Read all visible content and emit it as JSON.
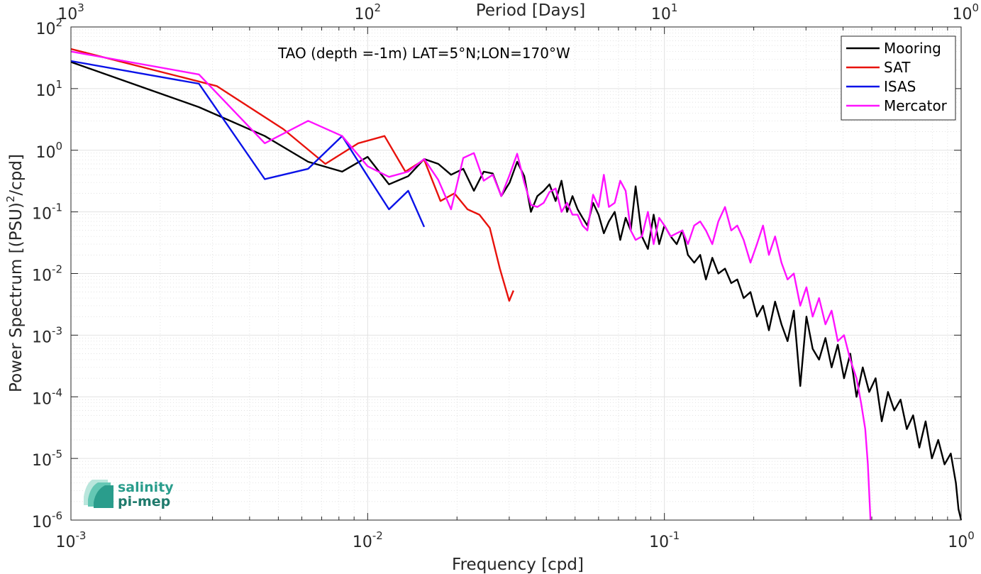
{
  "chart_data": {
    "type": "line",
    "title": "TAO (depth =-1m) LAT=5°N;LON=170°W",
    "xlabel": "Frequency [cpd]",
    "ylabel_main": "Power Spectrum [(PSU)",
    "ylabel_sup": "2",
    "ylabel_tail": "/cpd]",
    "top_xlabel": "Period [Days]",
    "xscale": "log",
    "yscale": "log",
    "xlim": [
      0.001,
      1
    ],
    "ylim": [
      1e-06,
      100
    ],
    "grid": true,
    "legend_position": "top-right",
    "x_ticks": [
      {
        "base": "10",
        "exp": "-3"
      },
      {
        "base": "10",
        "exp": "-2"
      },
      {
        "base": "10",
        "exp": "-1"
      },
      {
        "base": "10",
        "exp": "0"
      }
    ],
    "y_ticks": [
      {
        "base": "10",
        "exp": "2"
      },
      {
        "base": "10",
        "exp": "1"
      },
      {
        "base": "10",
        "exp": "0"
      },
      {
        "base": "10",
        "exp": "-1"
      },
      {
        "base": "10",
        "exp": "-2"
      },
      {
        "base": "10",
        "exp": "-3"
      },
      {
        "base": "10",
        "exp": "-4"
      },
      {
        "base": "10",
        "exp": "-5"
      },
      {
        "base": "10",
        "exp": "-6"
      }
    ],
    "top_ticks": [
      {
        "base": "10",
        "exp": "3"
      },
      {
        "base": "10",
        "exp": "2"
      },
      {
        "base": "10",
        "exp": "1"
      },
      {
        "base": "10",
        "exp": "0"
      }
    ],
    "series": [
      {
        "name": "Mooring",
        "color": "#000000",
        "x": [
          0.001,
          0.0027,
          0.0045,
          0.0063,
          0.0082,
          0.01,
          0.0118,
          0.0137,
          0.0155,
          0.0173,
          0.0191,
          0.021,
          0.0228,
          0.0246,
          0.0264,
          0.0282,
          0.0301,
          0.0319,
          0.0337,
          0.0355,
          0.0373,
          0.0392,
          0.041,
          0.043,
          0.045,
          0.047,
          0.049,
          0.051,
          0.053,
          0.055,
          0.0575,
          0.06,
          0.0625,
          0.065,
          0.068,
          0.071,
          0.074,
          0.077,
          0.08,
          0.084,
          0.088,
          0.092,
          0.096,
          0.1,
          0.105,
          0.11,
          0.115,
          0.12,
          0.126,
          0.132,
          0.138,
          0.145,
          0.152,
          0.16,
          0.168,
          0.176,
          0.185,
          0.195,
          0.205,
          0.215,
          0.225,
          0.236,
          0.248,
          0.26,
          0.273,
          0.287,
          0.301,
          0.316,
          0.332,
          0.349,
          0.366,
          0.384,
          0.403,
          0.423,
          0.444,
          0.466,
          0.49,
          0.515,
          0.54,
          0.567,
          0.595,
          0.625,
          0.656,
          0.689,
          0.723,
          0.759,
          0.797,
          0.837,
          0.879,
          0.923,
          0.96,
          0.98,
          1.0
        ],
        "y": [
          27,
          5,
          1.7,
          0.65,
          0.45,
          0.78,
          0.28,
          0.38,
          0.72,
          0.6,
          0.4,
          0.5,
          0.22,
          0.45,
          0.42,
          0.18,
          0.3,
          0.65,
          0.38,
          0.1,
          0.18,
          0.22,
          0.28,
          0.15,
          0.32,
          0.1,
          0.18,
          0.11,
          0.08,
          0.06,
          0.14,
          0.09,
          0.045,
          0.07,
          0.1,
          0.035,
          0.08,
          0.05,
          0.26,
          0.04,
          0.025,
          0.09,
          0.03,
          0.06,
          0.04,
          0.03,
          0.05,
          0.02,
          0.015,
          0.02,
          0.008,
          0.018,
          0.01,
          0.012,
          0.007,
          0.008,
          0.004,
          0.005,
          0.002,
          0.003,
          0.0012,
          0.0035,
          0.0015,
          0.0008,
          0.0025,
          0.00015,
          0.002,
          0.0006,
          0.0004,
          0.0009,
          0.0003,
          0.0007,
          0.0002,
          0.0005,
          0.0001,
          0.0003,
          0.00012,
          0.0002,
          4e-05,
          0.00012,
          6e-05,
          9e-05,
          3e-05,
          5e-05,
          1.5e-05,
          4e-05,
          1e-05,
          2e-05,
          8e-06,
          1.2e-05,
          4e-06,
          1.5e-06,
          1e-06
        ]
      },
      {
        "name": "SAT",
        "color": "#e8120c",
        "x": [
          0.001,
          0.0031,
          0.0052,
          0.0072,
          0.0093,
          0.0114,
          0.0134,
          0.0155,
          0.0176,
          0.0196,
          0.0217,
          0.0238,
          0.0258,
          0.0279,
          0.03,
          0.031
        ],
        "y": [
          44,
          11,
          2.2,
          0.6,
          1.3,
          1.7,
          0.45,
          0.7,
          0.15,
          0.2,
          0.11,
          0.09,
          0.055,
          0.012,
          0.0036,
          0.0053
        ]
      },
      {
        "name": "ISAS",
        "color": "#0a12e8",
        "x": [
          0.001,
          0.0027,
          0.0045,
          0.0063,
          0.0082,
          0.01,
          0.0118,
          0.0137,
          0.0155
        ],
        "y": [
          28,
          12,
          0.34,
          0.5,
          1.7,
          0.38,
          0.11,
          0.22,
          0.057
        ]
      },
      {
        "name": "Mercator",
        "color": "#ff12ff",
        "x": [
          0.001,
          0.0027,
          0.0045,
          0.0063,
          0.0082,
          0.01,
          0.0118,
          0.0137,
          0.0155,
          0.0173,
          0.0191,
          0.021,
          0.0228,
          0.0246,
          0.0264,
          0.0282,
          0.0301,
          0.0319,
          0.0337,
          0.0355,
          0.0373,
          0.0392,
          0.041,
          0.043,
          0.045,
          0.047,
          0.049,
          0.051,
          0.053,
          0.055,
          0.0575,
          0.06,
          0.0625,
          0.065,
          0.068,
          0.071,
          0.074,
          0.077,
          0.08,
          0.084,
          0.088,
          0.092,
          0.096,
          0.1,
          0.105,
          0.11,
          0.115,
          0.12,
          0.126,
          0.132,
          0.138,
          0.145,
          0.152,
          0.16,
          0.168,
          0.176,
          0.185,
          0.195,
          0.205,
          0.215,
          0.225,
          0.236,
          0.248,
          0.26,
          0.273,
          0.287,
          0.301,
          0.316,
          0.332,
          0.349,
          0.366,
          0.384,
          0.403,
          0.423,
          0.444,
          0.46,
          0.475,
          0.485,
          0.495
        ],
        "y": [
          40,
          17,
          1.3,
          3,
          1.7,
          0.55,
          0.37,
          0.45,
          0.72,
          0.33,
          0.11,
          0.75,
          0.9,
          0.32,
          0.4,
          0.18,
          0.4,
          0.88,
          0.3,
          0.13,
          0.12,
          0.14,
          0.21,
          0.24,
          0.1,
          0.14,
          0.09,
          0.09,
          0.06,
          0.05,
          0.19,
          0.12,
          0.4,
          0.12,
          0.14,
          0.32,
          0.22,
          0.05,
          0.035,
          0.04,
          0.1,
          0.03,
          0.08,
          0.06,
          0.04,
          0.045,
          0.05,
          0.03,
          0.06,
          0.07,
          0.05,
          0.03,
          0.07,
          0.12,
          0.05,
          0.06,
          0.035,
          0.015,
          0.03,
          0.06,
          0.02,
          0.04,
          0.015,
          0.008,
          0.01,
          0.003,
          0.006,
          0.002,
          0.004,
          0.0015,
          0.0025,
          0.0008,
          0.001,
          0.0004,
          0.0002,
          8e-05,
          3e-05,
          8e-06,
          1e-06
        ]
      }
    ],
    "logo": {
      "line1": "salinity",
      "line2": "pi-mep"
    }
  }
}
